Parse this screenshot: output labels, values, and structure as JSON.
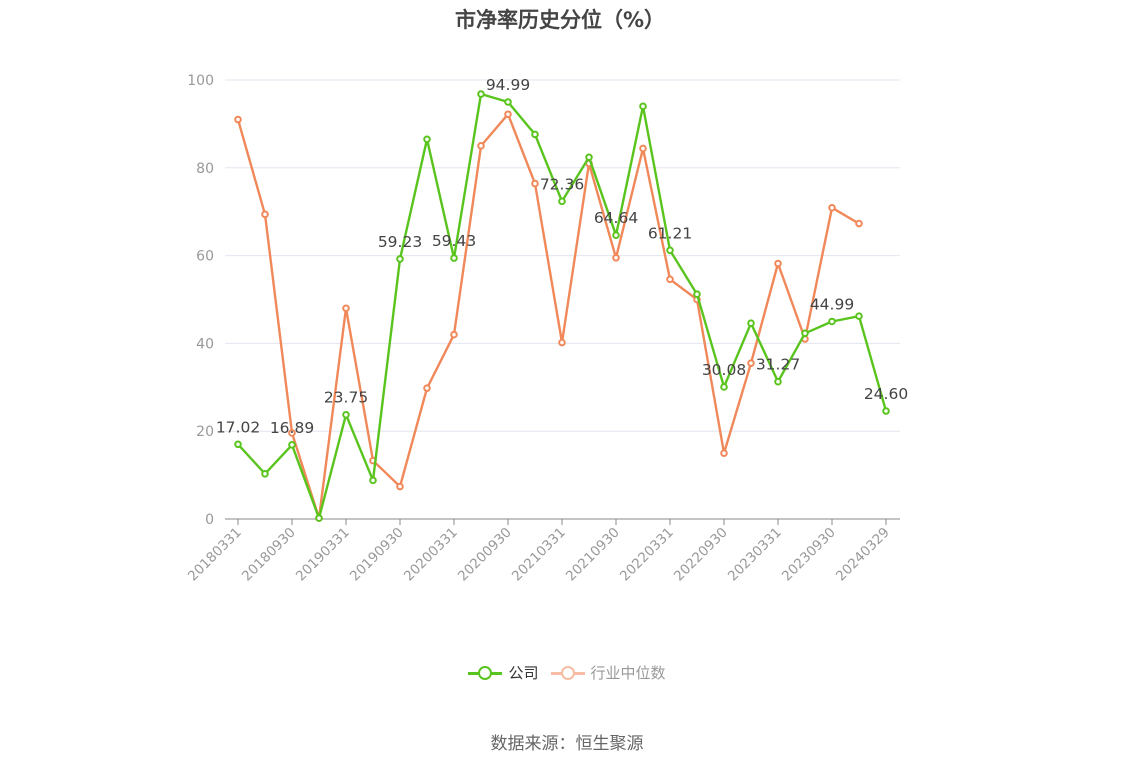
{
  "chart_data": {
    "type": "line",
    "title": "市净率历史分位（%）",
    "ylim": [
      0,
      100
    ],
    "yticks": [
      0,
      20,
      40,
      60,
      80,
      100
    ],
    "x_tick_labels": [
      "20180331",
      "20180930",
      "20190331",
      "20190930",
      "20200331",
      "20200930",
      "20210331",
      "20210930",
      "20220331",
      "20220930",
      "20230331",
      "20230930",
      "20240329"
    ],
    "x": [
      "20180331",
      "20180630",
      "20180930",
      "20181231",
      "20190331",
      "20190630",
      "20190930",
      "20191231",
      "20200331",
      "20200630",
      "20200930",
      "20201231",
      "20210331",
      "20210630",
      "20210930",
      "20211231",
      "20220331",
      "20220630",
      "20220930",
      "20221231",
      "20230331",
      "20230630",
      "20230930",
      "20231231",
      "20240329"
    ],
    "series": [
      {
        "name": "公司",
        "color": "#5ac41e",
        "values": [
          17.02,
          10.3,
          16.89,
          0.2,
          23.75,
          8.8,
          59.23,
          86.5,
          59.43,
          96.8,
          94.99,
          87.6,
          72.36,
          82.4,
          64.64,
          94.0,
          61.21,
          51.2,
          30.08,
          44.6,
          31.27,
          42.3,
          44.99,
          46.2,
          24.6
        ],
        "labels": [
          "17.02",
          "",
          "16.89",
          "",
          "23.75",
          "",
          "59.23",
          "",
          "59.43",
          "",
          "94.99",
          "",
          "72.36",
          "",
          "64.64",
          "",
          "61.21",
          "",
          "30.08",
          "",
          "31.27",
          "",
          "44.99",
          "",
          "24.60"
        ]
      },
      {
        "name": "行业中位数",
        "color": "#f0885a",
        "values": [
          91.0,
          69.4,
          19.6,
          0.2,
          48.0,
          13.3,
          7.4,
          29.8,
          42.0,
          85.0,
          92.2,
          76.4,
          40.2,
          81.0,
          59.5,
          84.4,
          54.6,
          50.0,
          15.0,
          35.5,
          58.2,
          41.0,
          70.9,
          67.3,
          null
        ],
        "labels": []
      }
    ],
    "legend_position": "bottom",
    "grid": true
  },
  "source": "数据来源：恒生聚源"
}
